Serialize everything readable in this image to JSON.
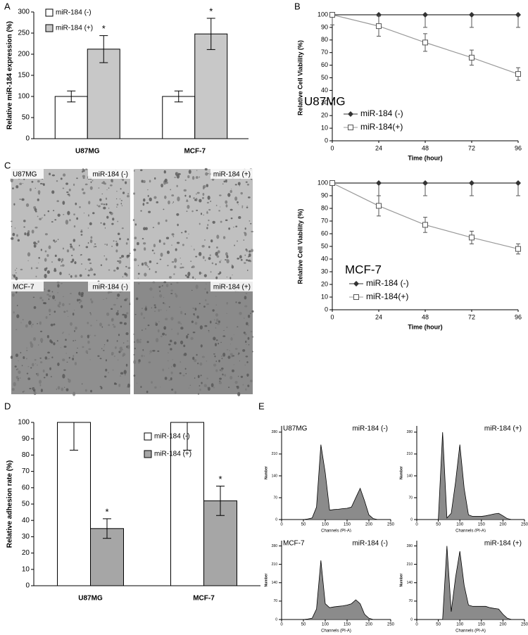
{
  "panel_labels": [
    "A",
    "B",
    "C",
    "D",
    "E"
  ],
  "chart_data": [
    {
      "type": "bar",
      "ylabel": "Relative miR-184 expression (%)",
      "categories": [
        "U87MG",
        "MCF-7"
      ],
      "series": [
        {
          "name": "miR-184 (-)",
          "color": "#ffffff",
          "values": [
            100,
            100
          ],
          "errors": [
            13,
            13
          ],
          "error_direction": "both"
        },
        {
          "name": "miR-184 (+)",
          "color": "#c8c8c8",
          "values": [
            212,
            248
          ],
          "errors": [
            32,
            37
          ],
          "error_direction": "both",
          "significance": [
            "*",
            "*"
          ]
        }
      ],
      "ylim": [
        0,
        300
      ],
      "yticks": [
        0,
        50,
        100,
        150,
        200,
        250,
        300
      ],
      "legend": "upper left"
    },
    {
      "type": "line",
      "title": "U87MG",
      "xlabel": "Time (hour)",
      "ylabel": "Relative Cell Viability (%)",
      "x": [
        0,
        24,
        48,
        72,
        96
      ],
      "xlim": [
        0,
        96
      ],
      "xticks": [
        0,
        24,
        48,
        72,
        96
      ],
      "ylim": [
        0,
        100
      ],
      "yticks": [
        0,
        10,
        20,
        30,
        40,
        50,
        60,
        70,
        80,
        90,
        100
      ],
      "series": [
        {
          "name": "miR-184 (-)",
          "color": "#333333",
          "marker": "diamond",
          "values": [
            100,
            100,
            100,
            100,
            100
          ],
          "errors": [
            8,
            10,
            10,
            10,
            10
          ],
          "error_direction": "down"
        },
        {
          "name": "miR-184(+)",
          "color": "#999999",
          "marker": "square",
          "values": [
            100,
            91,
            78,
            66,
            53
          ],
          "errors": [
            0,
            8,
            7,
            6,
            5
          ],
          "error_direction": "both"
        }
      ],
      "legend": "center left"
    },
    {
      "type": "line",
      "title": "MCF-7",
      "xlabel": "Time (hour)",
      "ylabel": "Relative Cell Viability (%)",
      "x": [
        0,
        24,
        48,
        72,
        96
      ],
      "xlim": [
        0,
        96
      ],
      "xticks": [
        0,
        24,
        48,
        72,
        96
      ],
      "ylim": [
        0,
        100
      ],
      "yticks": [
        0,
        10,
        20,
        30,
        40,
        50,
        60,
        70,
        80,
        90,
        100
      ],
      "series": [
        {
          "name": "miR-184 (-)",
          "color": "#333333",
          "marker": "diamond",
          "values": [
            100,
            100,
            100,
            100,
            100
          ],
          "errors": [
            0,
            10,
            10,
            10,
            10
          ],
          "error_direction": "down"
        },
        {
          "name": "miR-184(+)",
          "color": "#999999",
          "marker": "square",
          "values": [
            100,
            82,
            67,
            57,
            48
          ],
          "errors": [
            0,
            8,
            6,
            5,
            4
          ],
          "error_direction": "both"
        }
      ],
      "legend": "lower left"
    },
    {
      "type": "bar",
      "ylabel": "Relative adhesion rate (%)",
      "categories": [
        "U87MG",
        "MCF-7"
      ],
      "series": [
        {
          "name": "miR-184 (-)",
          "color": "#ffffff",
          "values": [
            100,
            100
          ],
          "errors": [
            17,
            17
          ],
          "error_direction": "down"
        },
        {
          "name": "miR-184 (+)",
          "color": "#a6a6a6",
          "values": [
            35,
            52
          ],
          "errors": [
            6,
            9
          ],
          "error_direction": "both",
          "significance": [
            "*",
            "*"
          ]
        }
      ],
      "ylim": [
        0,
        100
      ],
      "yticks": [
        0,
        10,
        20,
        30,
        40,
        50,
        60,
        70,
        80,
        90,
        100
      ],
      "legend": "upper center"
    },
    {
      "type": "flow",
      "title": "U87MG",
      "condition": "miR-184 (-)",
      "xlabel": "Channels (PI-A)",
      "ylabel": "Number",
      "x": [
        0,
        10,
        20,
        30,
        40,
        50,
        60,
        70,
        80,
        90,
        100,
        110,
        120,
        130,
        140,
        150,
        160,
        170,
        180,
        190,
        200,
        210,
        220,
        230,
        240,
        250
      ],
      "values": [
        0,
        0,
        0,
        0,
        0,
        0,
        2,
        5,
        40,
        240,
        150,
        30,
        32,
        33,
        35,
        36,
        40,
        70,
        100,
        60,
        15,
        3,
        0,
        0,
        0,
        0
      ],
      "xlim": [
        0,
        250
      ],
      "xticks": [
        0,
        50,
        100,
        150,
        200,
        250
      ],
      "ylim": [
        0,
        300
      ],
      "yticks": [
        0,
        70,
        140,
        210,
        280
      ],
      "color": "#777777"
    },
    {
      "type": "flow",
      "condition": "miR-184 (+)",
      "xlabel": "Channels (PI-A)",
      "ylabel": "Number",
      "x": [
        0,
        10,
        20,
        30,
        40,
        50,
        60,
        70,
        80,
        90,
        100,
        110,
        120,
        130,
        140,
        150,
        160,
        170,
        180,
        190,
        200,
        210,
        220,
        230,
        240,
        250
      ],
      "values": [
        0,
        0,
        0,
        0,
        0,
        0,
        280,
        5,
        20,
        120,
        240,
        100,
        15,
        10,
        10,
        10,
        12,
        15,
        18,
        20,
        12,
        3,
        0,
        0,
        0,
        0
      ],
      "xlim": [
        0,
        250
      ],
      "xticks": [
        0,
        50,
        100,
        150,
        200,
        250
      ],
      "ylim": [
        0,
        300
      ],
      "yticks": [
        0,
        70,
        140,
        210,
        280
      ],
      "color": "#777777"
    },
    {
      "type": "flow",
      "title": "MCF-7",
      "condition": "miR-184 (-)",
      "xlabel": "Channels (PI-A)",
      "ylabel": "Number",
      "x": [
        0,
        10,
        20,
        30,
        40,
        50,
        60,
        70,
        80,
        90,
        100,
        110,
        120,
        130,
        140,
        150,
        160,
        170,
        180,
        190,
        200,
        210,
        220,
        230,
        240,
        250
      ],
      "values": [
        0,
        0,
        0,
        0,
        0,
        0,
        2,
        5,
        40,
        225,
        60,
        45,
        48,
        50,
        52,
        55,
        60,
        75,
        60,
        20,
        5,
        0,
        0,
        0,
        0,
        0
      ],
      "xlim": [
        0,
        250
      ],
      "xticks": [
        0,
        50,
        100,
        150,
        200,
        250
      ],
      "ylim": [
        0,
        300
      ],
      "yticks": [
        0,
        70,
        140,
        210,
        280
      ],
      "color": "#777777"
    },
    {
      "type": "flow",
      "condition": "miR-184 (+)",
      "xlabel": "Channels (PI-A)",
      "ylabel": "Number",
      "x": [
        0,
        10,
        20,
        30,
        40,
        50,
        60,
        70,
        80,
        90,
        100,
        110,
        120,
        130,
        140,
        150,
        160,
        170,
        180,
        190,
        200,
        210,
        220,
        230,
        240,
        250
      ],
      "values": [
        0,
        0,
        0,
        0,
        0,
        0,
        0,
        280,
        30,
        160,
        260,
        130,
        55,
        50,
        50,
        50,
        50,
        45,
        42,
        40,
        20,
        5,
        0,
        0,
        0,
        0
      ],
      "xlim": [
        0,
        250
      ],
      "xticks": [
        0,
        50,
        100,
        150,
        200,
        250
      ],
      "ylim": [
        0,
        300
      ],
      "yticks": [
        0,
        70,
        140,
        210,
        280
      ],
      "color": "#777777"
    }
  ],
  "panel_c": {
    "images": [
      {
        "cell_line": "U87MG",
        "condition": "miR-184 (-)"
      },
      {
        "condition": "miR-184 (+)"
      },
      {
        "cell_line": "MCF-7",
        "condition": "miR-184 (-)"
      },
      {
        "condition": "miR-184 (+)"
      }
    ]
  }
}
